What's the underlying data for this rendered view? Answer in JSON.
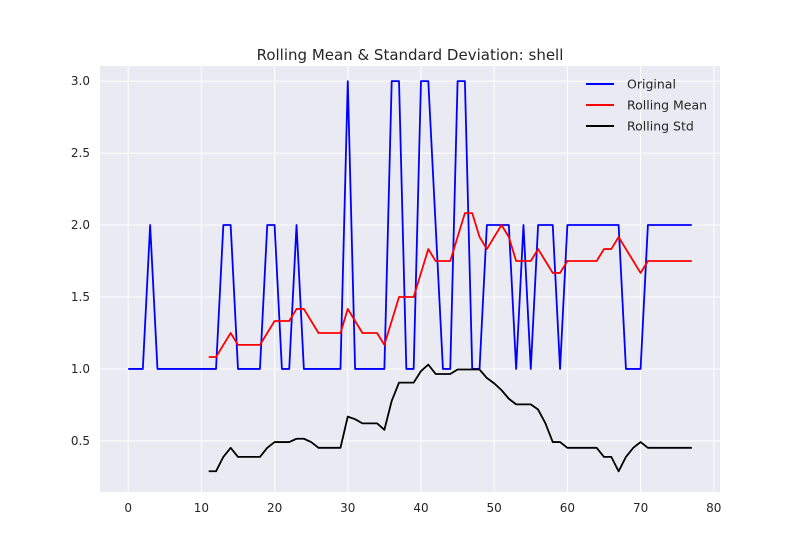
{
  "chart_data": {
    "type": "line",
    "title": "Rolling Mean & Standard Deviation: shell",
    "xlabel": "",
    "ylabel": "",
    "xlim": [
      -3.85,
      80.85
    ],
    "ylim": [
      0.145,
      3.105
    ],
    "xticks": [
      0,
      10,
      20,
      30,
      40,
      50,
      60,
      70,
      80
    ],
    "yticks": [
      0.5,
      1.0,
      1.5,
      2.0,
      2.5,
      3.0
    ],
    "ytick_labels": [
      "0.5",
      "1.0",
      "1.5",
      "2.0",
      "2.5",
      "3.0"
    ],
    "grid": true,
    "legend_position": "top-right",
    "series": [
      {
        "name": "Original",
        "color": "#0000ff",
        "x": [
          0,
          1,
          2,
          3,
          4,
          5,
          6,
          7,
          8,
          9,
          10,
          11,
          12,
          13,
          14,
          15,
          16,
          17,
          18,
          19,
          20,
          21,
          22,
          23,
          24,
          25,
          26,
          27,
          28,
          29,
          30,
          31,
          32,
          33,
          34,
          35,
          36,
          37,
          38,
          39,
          40,
          41,
          42,
          43,
          44,
          45,
          46,
          47,
          48,
          49,
          50,
          51,
          52,
          53,
          54,
          55,
          56,
          57,
          58,
          59,
          60,
          61,
          62,
          63,
          64,
          65,
          66,
          67,
          68,
          69,
          70,
          71,
          72,
          73,
          74,
          75,
          76,
          77
        ],
        "values": [
          1,
          1,
          1,
          2,
          1,
          1,
          1,
          1,
          1,
          1,
          1,
          1,
          1,
          2,
          2,
          1,
          1,
          1,
          1,
          2,
          2,
          1,
          1,
          2,
          1,
          1,
          1,
          1,
          1,
          1,
          3,
          1,
          1,
          1,
          1,
          1,
          3,
          3,
          1,
          1,
          3,
          3,
          2,
          1,
          1,
          3,
          3,
          1,
          1,
          2,
          2,
          2,
          2,
          1,
          2,
          1,
          2,
          2,
          2,
          1,
          2,
          2,
          2,
          2,
          2,
          2,
          2,
          2,
          1,
          1,
          1,
          2,
          2,
          2,
          2,
          2,
          2,
          2
        ]
      },
      {
        "name": "Rolling Mean",
        "color": "#ff0000",
        "x": [
          11,
          12,
          13,
          14,
          15,
          16,
          17,
          18,
          19,
          20,
          21,
          22,
          23,
          24,
          25,
          26,
          27,
          28,
          29,
          30,
          31,
          32,
          33,
          34,
          35,
          36,
          37,
          38,
          39,
          40,
          41,
          42,
          43,
          44,
          45,
          46,
          47,
          48,
          49,
          50,
          51,
          52,
          53,
          54,
          55,
          56,
          57,
          58,
          59,
          60,
          61,
          62,
          63,
          64,
          65,
          66,
          67,
          68,
          69,
          70,
          71,
          72,
          73,
          74,
          75,
          76,
          77
        ],
        "values": [
          1.083,
          1.083,
          1.167,
          1.25,
          1.167,
          1.167,
          1.167,
          1.167,
          1.25,
          1.333,
          1.333,
          1.333,
          1.417,
          1.417,
          1.333,
          1.25,
          1.25,
          1.25,
          1.25,
          1.417,
          1.333,
          1.25,
          1.25,
          1.25,
          1.167,
          1.333,
          1.5,
          1.5,
          1.5,
          1.667,
          1.833,
          1.75,
          1.75,
          1.75,
          1.917,
          2.083,
          2.083,
          1.917,
          1.833,
          1.917,
          2.0,
          1.917,
          1.75,
          1.75,
          1.75,
          1.833,
          1.75,
          1.667,
          1.667,
          1.75,
          1.75,
          1.75,
          1.75,
          1.75,
          1.833,
          1.833,
          1.917,
          1.833,
          1.75,
          1.667,
          1.75,
          1.75,
          1.75,
          1.75,
          1.75,
          1.75,
          1.75
        ]
      },
      {
        "name": "Rolling Std",
        "color": "#000000",
        "x": [
          11,
          12,
          13,
          14,
          15,
          16,
          17,
          18,
          19,
          20,
          21,
          22,
          23,
          24,
          25,
          26,
          27,
          28,
          29,
          30,
          31,
          32,
          33,
          34,
          35,
          36,
          37,
          38,
          39,
          40,
          41,
          42,
          43,
          44,
          45,
          46,
          47,
          48,
          49,
          50,
          51,
          52,
          53,
          54,
          55,
          56,
          57,
          58,
          59,
          60,
          61,
          62,
          63,
          64,
          65,
          66,
          67,
          68,
          69,
          70,
          71,
          72,
          73,
          74,
          75,
          76,
          77
        ],
        "values": [
          0.289,
          0.289,
          0.389,
          0.452,
          0.389,
          0.389,
          0.389,
          0.389,
          0.452,
          0.492,
          0.492,
          0.492,
          0.515,
          0.515,
          0.492,
          0.452,
          0.452,
          0.452,
          0.452,
          0.669,
          0.651,
          0.622,
          0.622,
          0.622,
          0.577,
          0.778,
          0.905,
          0.905,
          0.905,
          0.985,
          1.03,
          0.965,
          0.965,
          0.965,
          0.996,
          0.996,
          0.996,
          0.996,
          0.937,
          0.9,
          0.853,
          0.793,
          0.754,
          0.754,
          0.754,
          0.718,
          0.622,
          0.492,
          0.492,
          0.452,
          0.452,
          0.452,
          0.452,
          0.452,
          0.389,
          0.389,
          0.289,
          0.389,
          0.452,
          0.492,
          0.452,
          0.452,
          0.452,
          0.452,
          0.452,
          0.452,
          0.452
        ]
      }
    ]
  }
}
